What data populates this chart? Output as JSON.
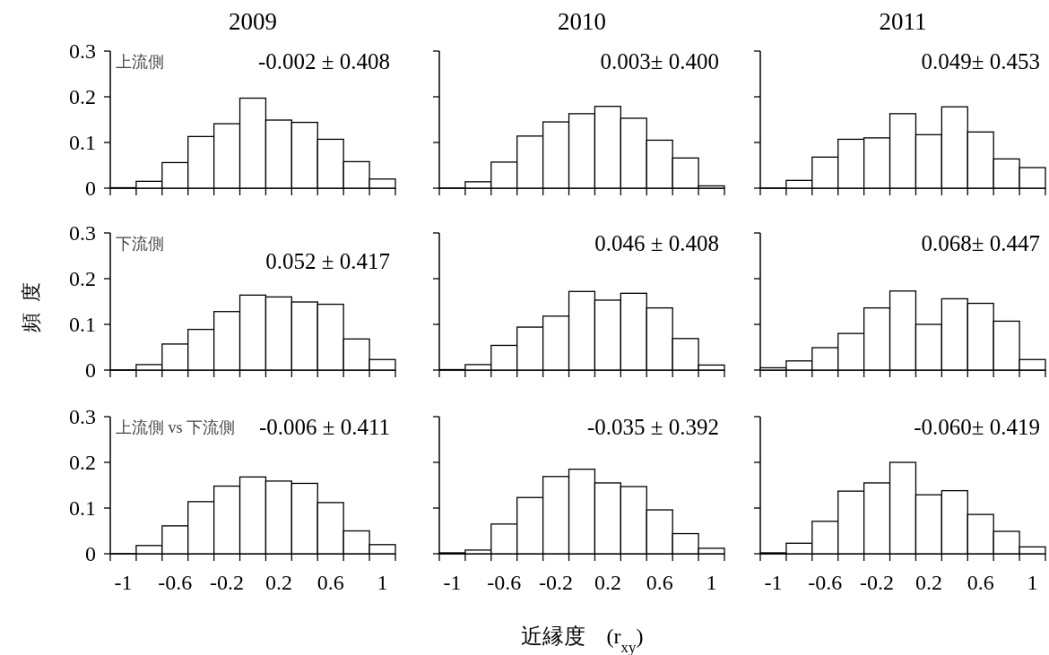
{
  "chart_data": [
    {
      "type": "histogram",
      "title": "2009",
      "annotations": [
        "上流側",
        "-0.002 ± 0.408"
      ],
      "bins": [
        -1.1,
        -0.9,
        -0.7,
        -0.5,
        -0.3,
        -0.1,
        0.1,
        0.3,
        0.5,
        0.7,
        0.9,
        1.1
      ],
      "values": [
        0.001,
        0.015,
        0.056,
        0.113,
        0.141,
        0.197,
        0.149,
        0.144,
        0.107,
        0.058,
        0.02
      ],
      "color": "#ffffff",
      "xlim": [
        -1.1,
        1.1
      ],
      "ylim": [
        0,
        0.3
      ],
      "yticks": [
        0,
        0.1,
        0.2,
        0.3
      ],
      "xticks": [
        {
          "value": -1.1,
          "label": null
        },
        -1,
        {
          "value": -0.9,
          "label": null
        },
        {
          "value": -0.7,
          "label": null
        },
        -0.6,
        {
          "value": -0.5,
          "label": null
        },
        {
          "value": -0.3,
          "label": null
        },
        -0.2,
        {
          "value": -0.1,
          "label": null
        },
        {
          "value": 0.1,
          "label": null
        },
        0.2,
        {
          "value": 0.3,
          "label": null
        },
        {
          "value": 0.5,
          "label": null
        },
        0.6,
        {
          "value": 0.7,
          "label": null
        },
        {
          "value": 0.9,
          "label": null
        },
        1,
        {
          "value": 1.1,
          "label": null
        }
      ],
      "tick_labels": "y"
    },
    {
      "type": "histogram",
      "title": "2010",
      "annotations": [
        "0.003± 0.400"
      ],
      "bins": [
        -1.1,
        -0.9,
        -0.7,
        -0.5,
        -0.3,
        -0.1,
        0.1,
        0.3,
        0.5,
        0.7,
        0.9,
        1.1
      ],
      "values": [
        0,
        0.014,
        0.057,
        0.114,
        0.145,
        0.163,
        0.179,
        0.153,
        0.105,
        0.066,
        0.005
      ],
      "color": "#ffffff",
      "xlim": [
        -1.1,
        1.1
      ],
      "ylim": [
        0,
        0.3
      ],
      "yticks": [
        0,
        0.1,
        0.2,
        0.3
      ],
      "xticks": [
        {
          "value": -1.1,
          "label": null
        },
        -1,
        {
          "value": -0.9,
          "label": null
        },
        {
          "value": -0.7,
          "label": null
        },
        -0.6,
        {
          "value": -0.5,
          "label": null
        },
        {
          "value": -0.3,
          "label": null
        },
        -0.2,
        {
          "value": -0.1,
          "label": null
        },
        {
          "value": 0.1,
          "label": null
        },
        0.2,
        {
          "value": 0.3,
          "label": null
        },
        {
          "value": 0.5,
          "label": null
        },
        0.6,
        {
          "value": 0.7,
          "label": null
        },
        {
          "value": 0.9,
          "label": null
        },
        1,
        {
          "value": 1.1,
          "label": null
        }
      ],
      "tick_labels": false
    },
    {
      "type": "histogram",
      "title": "2011",
      "annotations": [
        "0.049± 0.453"
      ],
      "bins": [
        -1.1,
        -0.9,
        -0.7,
        -0.5,
        -0.3,
        -0.1,
        0.1,
        0.3,
        0.5,
        0.7,
        0.9,
        1.1
      ],
      "values": [
        0,
        0.017,
        0.068,
        0.107,
        0.11,
        0.163,
        0.117,
        0.178,
        0.123,
        0.064,
        0.045
      ],
      "color": "#ffffff",
      "xlim": [
        -1.1,
        1.1
      ],
      "ylim": [
        0,
        0.3
      ],
      "yticks": [
        0,
        0.1,
        0.2,
        0.3
      ],
      "xticks": [
        {
          "value": -1.1,
          "label": null
        },
        -1,
        {
          "value": -0.9,
          "label": null
        },
        {
          "value": -0.7,
          "label": null
        },
        -0.6,
        {
          "value": -0.5,
          "label": null
        },
        {
          "value": -0.3,
          "label": null
        },
        -0.2,
        {
          "value": -0.1,
          "label": null
        },
        {
          "value": 0.1,
          "label": null
        },
        0.2,
        {
          "value": 0.3,
          "label": null
        },
        {
          "value": 0.5,
          "label": null
        },
        0.6,
        {
          "value": 0.7,
          "label": null
        },
        {
          "value": 0.9,
          "label": null
        },
        1,
        {
          "value": 1.1,
          "label": null
        }
      ],
      "tick_labels": false
    },
    {
      "type": "histogram",
      "ylabel": "頻度",
      "annotations": [
        "下流側",
        "0.052 ± 0.417"
      ],
      "bins": [
        -1.1,
        -0.9,
        -0.7,
        -0.5,
        -0.3,
        -0.1,
        0.1,
        0.3,
        0.5,
        0.7,
        0.9,
        1.1
      ],
      "values": [
        0,
        0.012,
        0.057,
        0.089,
        0.128,
        0.164,
        0.16,
        0.149,
        0.144,
        0.068,
        0.023
      ],
      "color": "#ffffff",
      "xlim": [
        -1.1,
        1.1
      ],
      "ylim": [
        0,
        0.3
      ],
      "yticks": [
        0,
        0.1,
        0.2,
        0.3
      ],
      "xticks": [
        {
          "value": -1.1,
          "label": null
        },
        -1,
        {
          "value": -0.9,
          "label": null
        },
        {
          "value": -0.7,
          "label": null
        },
        -0.6,
        {
          "value": -0.5,
          "label": null
        },
        {
          "value": -0.3,
          "label": null
        },
        -0.2,
        {
          "value": -0.1,
          "label": null
        },
        {
          "value": 0.1,
          "label": null
        },
        0.2,
        {
          "value": 0.3,
          "label": null
        },
        {
          "value": 0.5,
          "label": null
        },
        0.6,
        {
          "value": 0.7,
          "label": null
        },
        {
          "value": 0.9,
          "label": null
        },
        1,
        {
          "value": 1.1,
          "label": null
        }
      ],
      "tick_labels": "y"
    },
    {
      "type": "histogram",
      "annotations": [
        "0.046 ± 0.408"
      ],
      "bins": [
        -1.1,
        -0.9,
        -0.7,
        -0.5,
        -0.3,
        -0.1,
        0.1,
        0.3,
        0.5,
        0.7,
        0.9,
        1.1
      ],
      "values": [
        0.001,
        0.012,
        0.054,
        0.094,
        0.118,
        0.172,
        0.153,
        0.168,
        0.136,
        0.069,
        0.011
      ],
      "color": "#ffffff",
      "xlim": [
        -1.1,
        1.1
      ],
      "ylim": [
        0,
        0.3
      ],
      "yticks": [
        0,
        0.1,
        0.2,
        0.3
      ],
      "xticks": [
        {
          "value": -1.1,
          "label": null
        },
        -1,
        {
          "value": -0.9,
          "label": null
        },
        {
          "value": -0.7,
          "label": null
        },
        -0.6,
        {
          "value": -0.5,
          "label": null
        },
        {
          "value": -0.3,
          "label": null
        },
        -0.2,
        {
          "value": -0.1,
          "label": null
        },
        {
          "value": 0.1,
          "label": null
        },
        0.2,
        {
          "value": 0.3,
          "label": null
        },
        {
          "value": 0.5,
          "label": null
        },
        0.6,
        {
          "value": 0.7,
          "label": null
        },
        {
          "value": 0.9,
          "label": null
        },
        1,
        {
          "value": 1.1,
          "label": null
        }
      ],
      "tick_labels": false
    },
    {
      "type": "histogram",
      "annotations": [
        "0.068± 0.447"
      ],
      "bins": [
        -1.1,
        -0.9,
        -0.7,
        -0.5,
        -0.3,
        -0.1,
        0.1,
        0.3,
        0.5,
        0.7,
        0.9,
        1.1
      ],
      "values": [
        0.005,
        0.02,
        0.049,
        0.08,
        0.136,
        0.173,
        0.1,
        0.156,
        0.146,
        0.107,
        0.023
      ],
      "color": "#ffffff",
      "xlim": [
        -1.1,
        1.1
      ],
      "ylim": [
        0,
        0.3
      ],
      "yticks": [
        0,
        0.1,
        0.2,
        0.3
      ],
      "xticks": [
        {
          "value": -1.1,
          "label": null
        },
        -1,
        {
          "value": -0.9,
          "label": null
        },
        {
          "value": -0.7,
          "label": null
        },
        -0.6,
        {
          "value": -0.5,
          "label": null
        },
        {
          "value": -0.3,
          "label": null
        },
        -0.2,
        {
          "value": -0.1,
          "label": null
        },
        {
          "value": 0.1,
          "label": null
        },
        0.2,
        {
          "value": 0.3,
          "label": null
        },
        {
          "value": 0.5,
          "label": null
        },
        0.6,
        {
          "value": 0.7,
          "label": null
        },
        {
          "value": 0.9,
          "label": null
        },
        1,
        {
          "value": 1.1,
          "label": null
        }
      ],
      "tick_labels": false
    },
    {
      "type": "histogram",
      "annotations": [
        "上流側 vs 下流側",
        "-0.006 ± 0.411"
      ],
      "bins": [
        -1.1,
        -0.9,
        -0.7,
        -0.5,
        -0.3,
        -0.1,
        0.1,
        0.3,
        0.5,
        0.7,
        0.9,
        1.1
      ],
      "values": [
        0,
        0.018,
        0.061,
        0.114,
        0.148,
        0.168,
        0.159,
        0.154,
        0.112,
        0.05,
        0.02
      ],
      "color": "#ffffff",
      "xlim": [
        -1.1,
        1.1
      ],
      "ylim": [
        0,
        0.3
      ],
      "yticks": [
        0,
        0.1,
        0.2,
        0.3
      ],
      "xticks": [
        {
          "value": -1.1,
          "label": null
        },
        -1,
        {
          "value": -0.9,
          "label": null
        },
        {
          "value": -0.7,
          "label": null
        },
        -0.6,
        {
          "value": -0.5,
          "label": null
        },
        {
          "value": -0.3,
          "label": null
        },
        -0.2,
        {
          "value": -0.1,
          "label": null
        },
        {
          "value": 0.1,
          "label": null
        },
        0.2,
        {
          "value": 0.3,
          "label": null
        },
        {
          "value": 0.5,
          "label": null
        },
        0.6,
        {
          "value": 0.7,
          "label": null
        },
        {
          "value": 0.9,
          "label": null
        },
        1,
        {
          "value": 1.1,
          "label": null
        }
      ]
    },
    {
      "type": "histogram",
      "xlabel": "近縁度　(r$_{xy}$)",
      "annotations": [
        "-0.035 ± 0.392"
      ],
      "bins": [
        -1.1,
        -0.9,
        -0.7,
        -0.5,
        -0.3,
        -0.1,
        0.1,
        0.3,
        0.5,
        0.7,
        0.9,
        1.1
      ],
      "values": [
        0.002,
        0.008,
        0.065,
        0.123,
        0.169,
        0.185,
        0.155,
        0.147,
        0.096,
        0.044,
        0.012
      ],
      "color": "#ffffff",
      "xlim": [
        -1.1,
        1.1
      ],
      "ylim": [
        0,
        0.3
      ],
      "yticks": [
        0,
        0.1,
        0.2,
        0.3
      ],
      "xticks": [
        {
          "value": -1.1,
          "label": null
        },
        -1,
        {
          "value": -0.9,
          "label": null
        },
        {
          "value": -0.7,
          "label": null
        },
        -0.6,
        {
          "value": -0.5,
          "label": null
        },
        {
          "value": -0.3,
          "label": null
        },
        -0.2,
        {
          "value": -0.1,
          "label": null
        },
        {
          "value": 0.1,
          "label": null
        },
        0.2,
        {
          "value": 0.3,
          "label": null
        },
        {
          "value": 0.5,
          "label": null
        },
        0.6,
        {
          "value": 0.7,
          "label": null
        },
        {
          "value": 0.9,
          "label": null
        },
        1,
        {
          "value": 1.1,
          "label": null
        }
      ],
      "tick_labels": "x"
    },
    {
      "type": "histogram",
      "annotations": [
        "-0.060± 0.419"
      ],
      "bins": [
        -1.1,
        -0.9,
        -0.7,
        -0.5,
        -0.3,
        -0.1,
        0.1,
        0.3,
        0.5,
        0.7,
        0.9,
        1.1
      ],
      "values": [
        0.002,
        0.023,
        0.071,
        0.137,
        0.155,
        0.2,
        0.129,
        0.138,
        0.086,
        0.049,
        0.015
      ],
      "color": "#ffffff",
      "xlim": [
        -1.1,
        1.1
      ],
      "ylim": [
        0,
        0.3
      ],
      "yticks": [
        0,
        0.1,
        0.2,
        0.3
      ],
      "xticks": [
        {
          "value": -1.1,
          "label": null
        },
        -1,
        {
          "value": -0.9,
          "label": null
        },
        {
          "value": -0.7,
          "label": null
        },
        -0.6,
        {
          "value": -0.5,
          "label": null
        },
        {
          "value": -0.3,
          "label": null
        },
        -0.2,
        {
          "value": -0.1,
          "label": null
        },
        {
          "value": 0.1,
          "label": null
        },
        0.2,
        {
          "value": 0.3,
          "label": null
        },
        {
          "value": 0.5,
          "label": null
        },
        0.6,
        {
          "value": 0.7,
          "label": null
        },
        {
          "value": 0.9,
          "label": null
        },
        1,
        {
          "value": 1.1,
          "label": null
        }
      ],
      "tick_labels": "x"
    }
  ]
}
